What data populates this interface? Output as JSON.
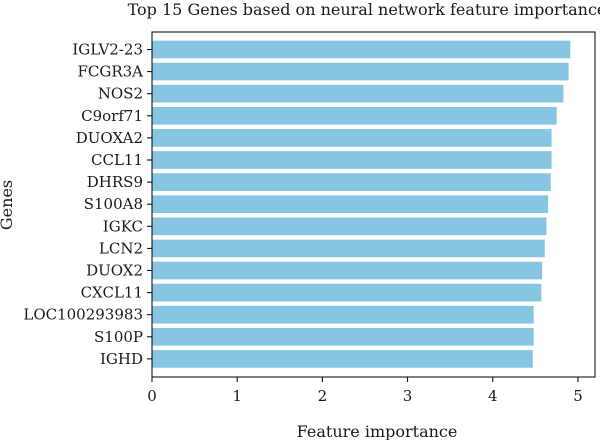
{
  "chart_data": {
    "type": "bar",
    "orientation": "horizontal",
    "title": "Top 15 Genes based on neural network feature importance",
    "xlabel": "Feature importance",
    "ylabel": "Genes",
    "xlim": [
      0,
      5.2
    ],
    "xticks": [
      0,
      1,
      2,
      3,
      4,
      5
    ],
    "grid": false,
    "bar_color": "#87c6e2",
    "categories": [
      "IGLV2-23",
      "FCGR3A",
      "NOS2",
      "C9orf71",
      "DUOXA2",
      "CCL11",
      "DHRS9",
      "S100A8",
      "IGKC",
      "LCN2",
      "DUOX2",
      "CXCL11",
      "LOC100293983",
      "S100P",
      "IGHD"
    ],
    "values": [
      4.91,
      4.89,
      4.83,
      4.75,
      4.69,
      4.69,
      4.68,
      4.65,
      4.63,
      4.61,
      4.58,
      4.57,
      4.48,
      4.48,
      4.47
    ]
  }
}
